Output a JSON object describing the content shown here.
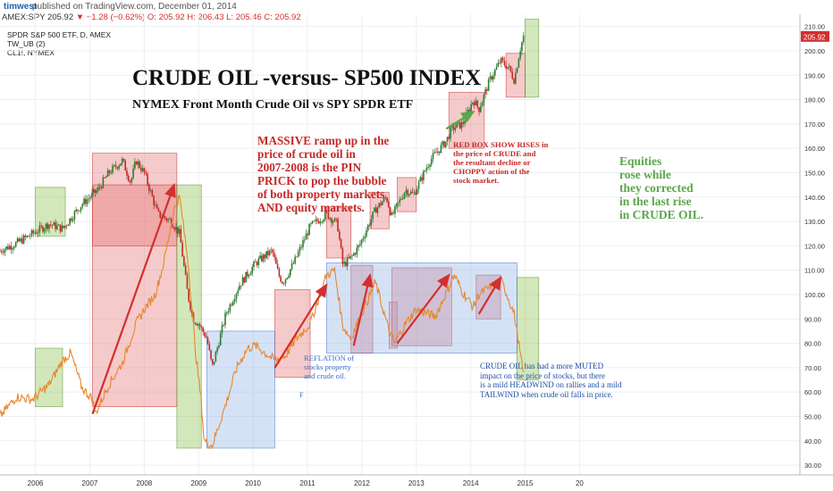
{
  "header": {
    "user": "timwest",
    "published": "published on TradingView.com, December 01, 2014"
  },
  "legend": {
    "symbol": "AMEX:SPY",
    "price": "205.92",
    "change": "▼ −1.28 (−0.62%)",
    "open": "O: 205.92",
    "high": "H: 206.43",
    "low": "L: 205.46",
    "close": "C: 205.92",
    "series_title": "SPDR S&P 500 ETF, D, AMEX",
    "indicator": "TW_UB (2)",
    "overlay": "CL1!, NYMEX"
  },
  "annotations": {
    "massive": "MASSIVE ramp up in the\nprice of crude oil in\n2007-2008 is the PIN\nPRICK to pop the bubble\nof both property markets\nAND equity markets.",
    "red_box": "RED BOX SHOW RISES in\nthe price of CRUDE and\nthe resultant decline or\nCHOPPY action of the\nstock market.",
    "equities": "Equities\nrose while\nthey corrected\nin the last rise\nin CRUDE OIL.",
    "reflation": "REFLATION of\nstocks property\nand crude oil.",
    "muted": "CRUDE OIL has had a more MUTED\nimpact on the price of stocks, but there\nis a mild HEADWIND on rallies and a mild\nTAILWIND when crude oil falls in price.",
    "f_label": "F"
  },
  "colors": {
    "spy_up": "#2e7d32",
    "spy_down": "#c62828",
    "crude": "#e8862a",
    "red_box": "#e57373",
    "green_box": "#8bc34a",
    "blue_box": "#90b4e8",
    "price_tag": "#d32f2f",
    "annotation_red": "#c62828",
    "annotation_green": "#5aa64a",
    "annotation_blue": "#1f4fa8"
  },
  "chart_data": {
    "type": "line",
    "title": "CRUDE OIL -versus-  SP500 INDEX",
    "subtitle": "NYMEX Front Month Crude Oil vs SPY SPDR ETF",
    "xlabel": "",
    "ylabel": "",
    "x_ticks": [
      "2006",
      "2007",
      "2008",
      "2009",
      "2010",
      "2011",
      "2012",
      "2013",
      "2014",
      "2015",
      "20"
    ],
    "y_ticks": [
      30,
      40,
      50,
      60,
      70,
      80,
      90,
      100,
      110,
      120,
      130,
      140,
      150,
      160,
      170,
      180,
      190,
      200,
      210
    ],
    "ylim": [
      26,
      215
    ],
    "xlim": [
      2005.3,
      2020.0
    ],
    "axis_position": "right",
    "last_price_label": "205.92",
    "grid": true,
    "series": [
      {
        "name": "AMEX:SPY",
        "style": "candles",
        "x": [
          2005.3,
          2005.6,
          2005.9,
          2006.2,
          2006.45,
          2006.8,
          2007.0,
          2007.1,
          2007.3,
          2007.55,
          2007.7,
          2007.8,
          2007.95,
          2008.2,
          2008.45,
          2008.6,
          2008.75,
          2008.85,
          2008.95,
          2009.1,
          2009.2,
          2009.45,
          2009.7,
          2010.0,
          2010.3,
          2010.42,
          2010.5,
          2010.7,
          2011.0,
          2011.3,
          2011.5,
          2011.6,
          2011.75,
          2011.9,
          2012.2,
          2012.4,
          2012.5,
          2012.75,
          2012.9,
          2013.2,
          2013.5,
          2013.6,
          2013.8,
          2014.0,
          2014.1,
          2014.3,
          2014.5,
          2014.65,
          2014.75,
          2014.85,
          2014.92
        ],
        "values": [
          118,
          121,
          125,
          129,
          127,
          137,
          141,
          143,
          150,
          155,
          146,
          155,
          150,
          133,
          130,
          125,
          100,
          90,
          88,
          82,
          70,
          92,
          104,
          113,
          118,
          108,
          105,
          113,
          128,
          133,
          129,
          112,
          115,
          120,
          135,
          140,
          132,
          143,
          141,
          155,
          163,
          168,
          170,
          180,
          176,
          188,
          196,
          193,
          188,
          200,
          206
        ]
      },
      {
        "name": "CL1!, NYMEX",
        "style": "line",
        "x": [
          2005.3,
          2005.6,
          2005.9,
          2006.2,
          2006.45,
          2006.6,
          2006.8,
          2007.0,
          2007.05,
          2007.3,
          2007.55,
          2007.8,
          2007.95,
          2008.15,
          2008.3,
          2008.5,
          2008.6,
          2008.75,
          2008.9,
          2009.0,
          2009.05,
          2009.2,
          2009.45,
          2009.65,
          2009.85,
          2010.0,
          2010.35,
          2010.55,
          2010.75,
          2011.0,
          2011.3,
          2011.45,
          2011.6,
          2011.75,
          2011.9,
          2012.2,
          2012.45,
          2012.55,
          2012.75,
          2012.95,
          2013.3,
          2013.65,
          2013.8,
          2014.0,
          2014.1,
          2014.3,
          2014.5,
          2014.6,
          2014.75,
          2014.85,
          2014.92
        ],
        "values": [
          50,
          58,
          57,
          63,
          73,
          76,
          62,
          57,
          51,
          63,
          72,
          88,
          94,
          100,
          112,
          135,
          140,
          115,
          75,
          56,
          40,
          38,
          55,
          70,
          78,
          79,
          73,
          75,
          82,
          88,
          108,
          110,
          87,
          82,
          90,
          105,
          85,
          80,
          88,
          94,
          91,
          108,
          101,
          95,
          100,
          103,
          106,
          101,
          92,
          77,
          67
        ]
      }
    ],
    "regions": [
      {
        "color": "red",
        "x": [
          2007.0,
          2008.55
        ],
        "y": [
          54,
          158
        ]
      },
      {
        "color": "red",
        "x": [
          2007.0,
          2008.55
        ],
        "y": [
          120,
          145
        ]
      },
      {
        "color": "red",
        "x": [
          2010.35,
          2011.0
        ],
        "y": [
          66,
          102
        ]
      },
      {
        "color": "red",
        "x": [
          2011.3,
          2011.75
        ],
        "y": [
          115,
          136
        ]
      },
      {
        "color": "red",
        "x": [
          2011.75,
          2012.15
        ],
        "y": [
          76,
          112
        ]
      },
      {
        "color": "red",
        "x": [
          2012.1,
          2012.45
        ],
        "y": [
          127,
          142
        ]
      },
      {
        "color": "red",
        "x": [
          2012.6,
          2012.95
        ],
        "y": [
          134,
          148
        ]
      },
      {
        "color": "red",
        "x": [
          2012.45,
          2012.6
        ],
        "y": [
          78,
          97
        ]
      },
      {
        "color": "red",
        "x": [
          2012.5,
          2013.6
        ],
        "y": [
          79,
          111
        ]
      },
      {
        "color": "red",
        "x": [
          2013.55,
          2014.2
        ],
        "y": [
          160,
          183
        ]
      },
      {
        "color": "red",
        "x": [
          2014.6,
          2014.95
        ],
        "y": [
          181,
          199
        ]
      },
      {
        "color": "red",
        "x": [
          2014.05,
          2014.5
        ],
        "y": [
          90,
          108
        ]
      },
      {
        "color": "green",
        "x": [
          2005.95,
          2006.45
        ],
        "y": [
          54,
          78
        ]
      },
      {
        "color": "green",
        "x": [
          2005.95,
          2006.5
        ],
        "y": [
          124,
          144
        ]
      },
      {
        "color": "green",
        "x": [
          2008.55,
          2009.0
        ],
        "y": [
          37,
          145
        ]
      },
      {
        "color": "green",
        "x": [
          2014.8,
          2015.2
        ],
        "y": [
          65,
          107
        ]
      },
      {
        "color": "green",
        "x": [
          2014.95,
          2015.2
        ],
        "y": [
          181,
          213
        ]
      },
      {
        "color": "blue",
        "x": [
          2009.1,
          2010.35
        ],
        "y": [
          37,
          85
        ]
      },
      {
        "color": "blue",
        "x": [
          2011.3,
          2014.8
        ],
        "y": [
          76,
          113
        ]
      }
    ],
    "arrows": [
      {
        "color": "red",
        "from": [
          2007.0,
          51
        ],
        "to": [
          2008.5,
          145
        ]
      },
      {
        "color": "red",
        "from": [
          2010.35,
          70
        ],
        "to": [
          2011.3,
          104
        ]
      },
      {
        "color": "red",
        "from": [
          2011.8,
          79
        ],
        "to": [
          2012.1,
          108
        ]
      },
      {
        "color": "red",
        "from": [
          2012.6,
          80
        ],
        "to": [
          2013.55,
          108
        ]
      },
      {
        "color": "red",
        "from": [
          2014.1,
          92
        ],
        "to": [
          2014.5,
          107
        ]
      },
      {
        "color": "green",
        "from": [
          2013.5,
          168
        ],
        "to": [
          2014.0,
          175
        ]
      }
    ]
  }
}
